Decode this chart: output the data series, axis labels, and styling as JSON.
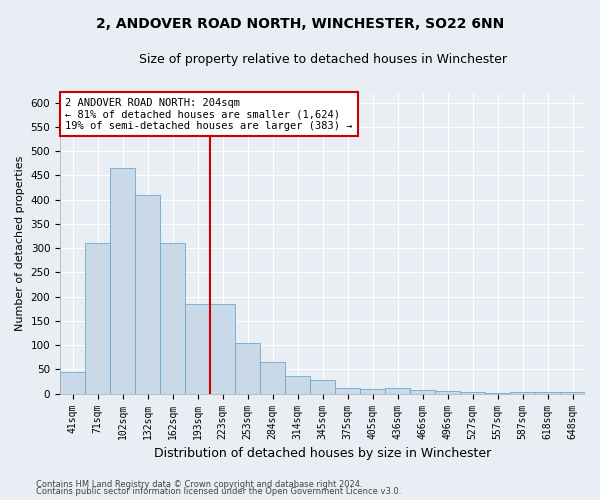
{
  "title_line1": "2, ANDOVER ROAD NORTH, WINCHESTER, SO22 6NN",
  "title_line2": "Size of property relative to detached houses in Winchester",
  "xlabel": "Distribution of detached houses by size in Winchester",
  "ylabel": "Number of detached properties",
  "categories": [
    "41sqm",
    "71sqm",
    "102sqm",
    "132sqm",
    "162sqm",
    "193sqm",
    "223sqm",
    "253sqm",
    "284sqm",
    "314sqm",
    "345sqm",
    "375sqm",
    "405sqm",
    "436sqm",
    "466sqm",
    "496sqm",
    "527sqm",
    "557sqm",
    "587sqm",
    "618sqm",
    "648sqm"
  ],
  "values": [
    45,
    311,
    465,
    410,
    311,
    185,
    185,
    104,
    65,
    37,
    29,
    12,
    10,
    12,
    8,
    5,
    3,
    1,
    4,
    3,
    4
  ],
  "bar_color": "#c9d9e8",
  "bar_edge_color": "#6baad0",
  "bar_width": 1.0,
  "ref_line_x": 5.5,
  "ref_line_color": "#cc0000",
  "annotation_text": "2 ANDOVER ROAD NORTH: 204sqm\n← 81% of detached houses are smaller (1,624)\n19% of semi-detached houses are larger (383) →",
  "annotation_box_color": "#ffffff",
  "annotation_box_edge_color": "#cc0000",
  "ylim": [
    0,
    620
  ],
  "yticks": [
    0,
    50,
    100,
    150,
    200,
    250,
    300,
    350,
    400,
    450,
    500,
    550,
    600
  ],
  "background_color": "#e8eef4",
  "axes_background_color": "#e8eef4",
  "grid_color": "#ffffff",
  "footer_line1": "Contains HM Land Registry data © Crown copyright and database right 2024.",
  "footer_line2": "Contains public sector information licensed under the Open Government Licence v3.0.",
  "title1_fontsize": 10,
  "title2_fontsize": 9,
  "tick_fontsize": 7,
  "ylabel_fontsize": 8,
  "xlabel_fontsize": 9,
  "annotation_fontsize": 7.5,
  "footer_fontsize": 6
}
